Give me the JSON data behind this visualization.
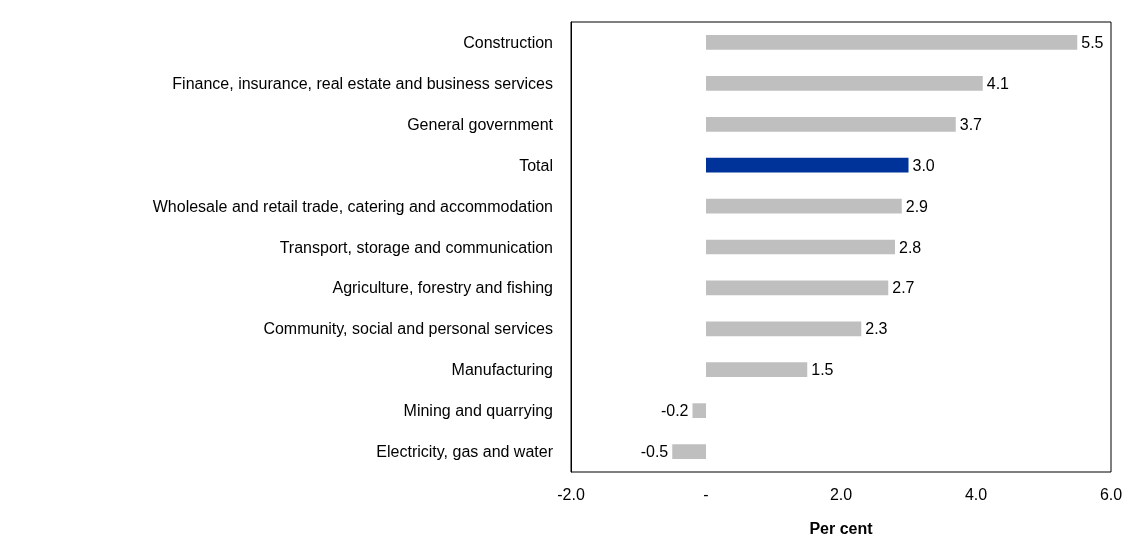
{
  "chart_data": {
    "type": "bar",
    "orientation": "horizontal",
    "xlabel": "Per cent",
    "categories": [
      "Construction",
      "Finance, insurance, real estate and business services",
      "General government",
      "Total",
      "Wholesale and retail trade, catering and accommodation",
      "Transport, storage and communication",
      "Agriculture, forestry and fishing",
      "Community, social and personal services",
      "Manufacturing",
      "Mining and quarrying",
      "Electricity, gas and water"
    ],
    "values": [
      5.5,
      4.1,
      3.7,
      3.0,
      2.9,
      2.8,
      2.7,
      2.3,
      1.5,
      -0.2,
      -0.5
    ],
    "value_labels": [
      "5.5",
      "4.1",
      "3.7",
      "3.0",
      "2.9",
      "2.8",
      "2.7",
      "2.3",
      "1.5",
      "-0.2",
      "-0.5"
    ],
    "colors": [
      "#bfbfbf",
      "#bfbfbf",
      "#bfbfbf",
      "#003399",
      "#bfbfbf",
      "#bfbfbf",
      "#bfbfbf",
      "#bfbfbf",
      "#bfbfbf",
      "#bfbfbf",
      "#bfbfbf"
    ],
    "xlim": [
      -2,
      6
    ],
    "xticks": [
      {
        "value": -2,
        "label": "-2.0"
      },
      {
        "value": 0,
        "label": "-"
      },
      {
        "value": 2,
        "label": "2.0"
      },
      {
        "value": 4,
        "label": "4.0"
      },
      {
        "value": 6,
        "label": "6.0"
      }
    ],
    "grid": false
  }
}
